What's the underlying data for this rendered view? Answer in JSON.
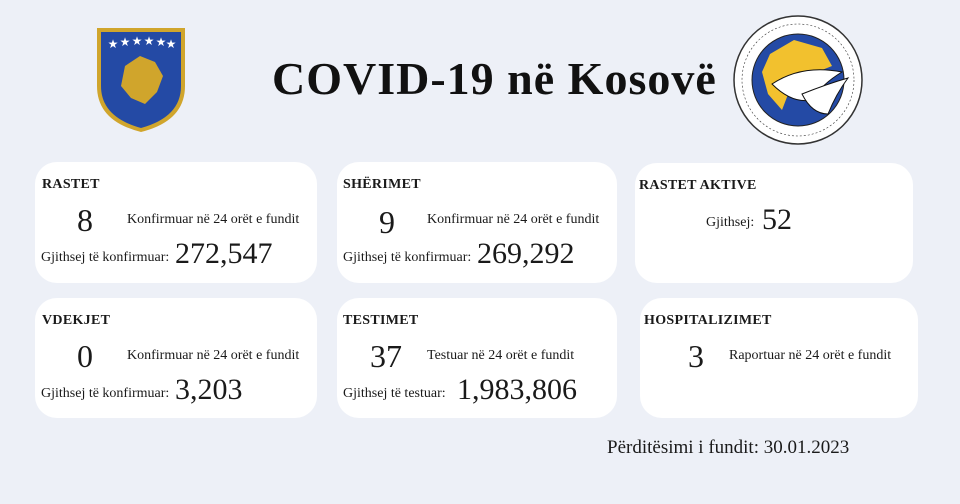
{
  "title": "COVID-19 në Kosovë",
  "logo_text": "INSTITUTI KOMBËTAR I SHËNDETËSISË PUBLIKE TË KOSOVËS · NATIONAL INSTITUTE OF PUBLIC HEALTH OF KOSOVA · MCMXXV",
  "colors": {
    "background": "#edf0f7",
    "card": "#ffffff",
    "emblem_blue": "#244aa5",
    "emblem_gold": "#d0a52c"
  },
  "cards": {
    "rastet": {
      "label": "RASTET",
      "daily": "8",
      "daily_text": "Konfirmuar në 24 orët e fundit",
      "total_label": "Gjithsej të konfirmuar:",
      "total": "272,547"
    },
    "sherimet": {
      "label": "SHËRIMET",
      "daily": "9",
      "daily_text": "Konfirmuar në 24 orët e fundit",
      "total_label": "Gjithsej të konfirmuar:",
      "total": "269,292"
    },
    "aktive": {
      "label": "RASTET AKTIVE",
      "total_label": "Gjithsej:",
      "total": "52"
    },
    "vdekjet": {
      "label": "VDEKJET",
      "daily": "0",
      "daily_text": "Konfirmuar në 24 orët e fundit",
      "total_label": "Gjithsej të konfirmuar:",
      "total": "3,203"
    },
    "testimet": {
      "label": "TESTIMET",
      "daily": "37",
      "daily_text": "Testuar në 24 orët e fundit",
      "total_label": "Gjithsej të testuar:",
      "total": "1,983,806"
    },
    "hospitalizimet": {
      "label": "HOSPITALIZIMET",
      "daily": "3",
      "daily_text": "Raportuar në 24 orët e fundit"
    }
  },
  "updated": "Përditësimi i fundit: 30.01.2023"
}
